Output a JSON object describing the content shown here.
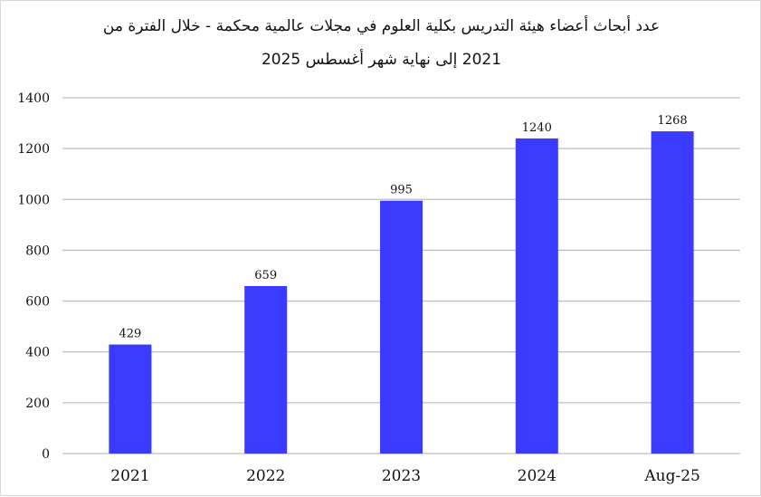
{
  "chart_data": {
    "type": "bar",
    "title": "عدد أبحاث أعضاء هيئة التدريس بكلية العلوم في مجلات عالمية محكمة - خلال الفترة من 2021 إلى نهاية شهر أغسطس 2025",
    "title_lines": [
      "عدد أبحاث أعضاء هيئة التدريس بكلية العلوم في مجلات عالمية محكمة - خلال الفترة من",
      "2021 إلى نهاية شهر أغسطس 2025"
    ],
    "categories": [
      "2021",
      "2022",
      "2023",
      "2024",
      "Aug-25"
    ],
    "values": [
      429,
      659,
      995,
      1240,
      1268
    ],
    "data_labels": [
      "429",
      "659",
      "995",
      "1240",
      "1268"
    ],
    "xlabel": "",
    "ylabel": "",
    "ylim": [
      0,
      1400
    ],
    "yticks": [
      0,
      200,
      400,
      600,
      800,
      1000,
      1200,
      1400
    ],
    "grid": true,
    "legend": null,
    "bar_color": "#3b3bff",
    "grid_color": "#bfbfbf"
  }
}
